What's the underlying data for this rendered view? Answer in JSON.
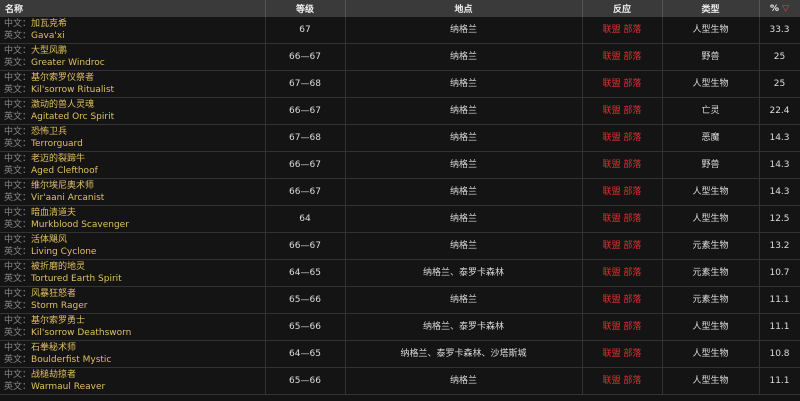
{
  "headers": {
    "name": "名称",
    "level": "等级",
    "location": "地点",
    "reaction": "反应",
    "type": "类型",
    "percent": "%"
  },
  "labels": {
    "cn": "中文：",
    "en": "英文："
  },
  "sort_icon": "sort-desc-icon",
  "rows": [
    {
      "cn": "加瓦克希",
      "en": "Gava'xi",
      "level": "67",
      "location": "纳格兰",
      "reaction": "联盟 部落",
      "type": "人型生物",
      "percent": "33.3"
    },
    {
      "cn": "大型风鹏",
      "en": "Greater Windroc",
      "level": "66—67",
      "location": "纳格兰",
      "reaction": "联盟 部落",
      "type": "野兽",
      "percent": "25"
    },
    {
      "cn": "基尔索罗仪祭者",
      "en": "Kil'sorrow Ritualist",
      "level": "67—68",
      "location": "纳格兰",
      "reaction": "联盟 部落",
      "type": "人型生物",
      "percent": "25"
    },
    {
      "cn": "激动的兽人灵魂",
      "en": "Agitated Orc Spirit",
      "level": "66—67",
      "location": "纳格兰",
      "reaction": "联盟 部落",
      "type": "亡灵",
      "percent": "22.4"
    },
    {
      "cn": "恐怖卫兵",
      "en": "Terrorguard",
      "level": "67—68",
      "location": "纳格兰",
      "reaction": "联盟 部落",
      "type": "恶魔",
      "percent": "14.3"
    },
    {
      "cn": "老迈的裂蹄牛",
      "en": "Aged Clefthoof",
      "level": "66—67",
      "location": "纳格兰",
      "reaction": "联盟 部落",
      "type": "野兽",
      "percent": "14.3"
    },
    {
      "cn": "维尔埃尼奥术师",
      "en": "Vir'aani Arcanist",
      "level": "66—67",
      "location": "纳格兰",
      "reaction": "联盟 部落",
      "type": "人型生物",
      "percent": "14.3"
    },
    {
      "cn": "暗血清道夫",
      "en": "Murkblood Scavenger",
      "level": "64",
      "location": "纳格兰",
      "reaction": "联盟 部落",
      "type": "人型生物",
      "percent": "12.5"
    },
    {
      "cn": "活体飓风",
      "en": "Living Cyclone",
      "level": "66—67",
      "location": "纳格兰",
      "reaction": "联盟 部落",
      "type": "元素生物",
      "percent": "13.2"
    },
    {
      "cn": "被折磨的地灵",
      "en": "Tortured Earth Spirit",
      "level": "64—65",
      "location": "纳格兰、泰罗卡森林",
      "reaction": "联盟 部落",
      "type": "元素生物",
      "percent": "10.7"
    },
    {
      "cn": "风暴狂怒者",
      "en": "Storm Rager",
      "level": "65—66",
      "location": "纳格兰",
      "reaction": "联盟 部落",
      "type": "元素生物",
      "percent": "11.1"
    },
    {
      "cn": "基尔索罗勇士",
      "en": "Kil'sorrow Deathsworn",
      "level": "65—66",
      "location": "纳格兰、泰罗卡森林",
      "reaction": "联盟 部落",
      "type": "人型生物",
      "percent": "11.1"
    },
    {
      "cn": "石拳秘术师",
      "en": "Boulderfist Mystic",
      "level": "64—65",
      "location": "纳格兰、泰罗卡森林、沙塔斯城",
      "reaction": "联盟 部落",
      "type": "人型生物",
      "percent": "10.8"
    },
    {
      "cn": "战槌劫掠者",
      "en": "Warmaul Reaver",
      "level": "65—66",
      "location": "纳格兰",
      "reaction": "联盟 部落",
      "type": "人型生物",
      "percent": "11.1"
    }
  ]
}
